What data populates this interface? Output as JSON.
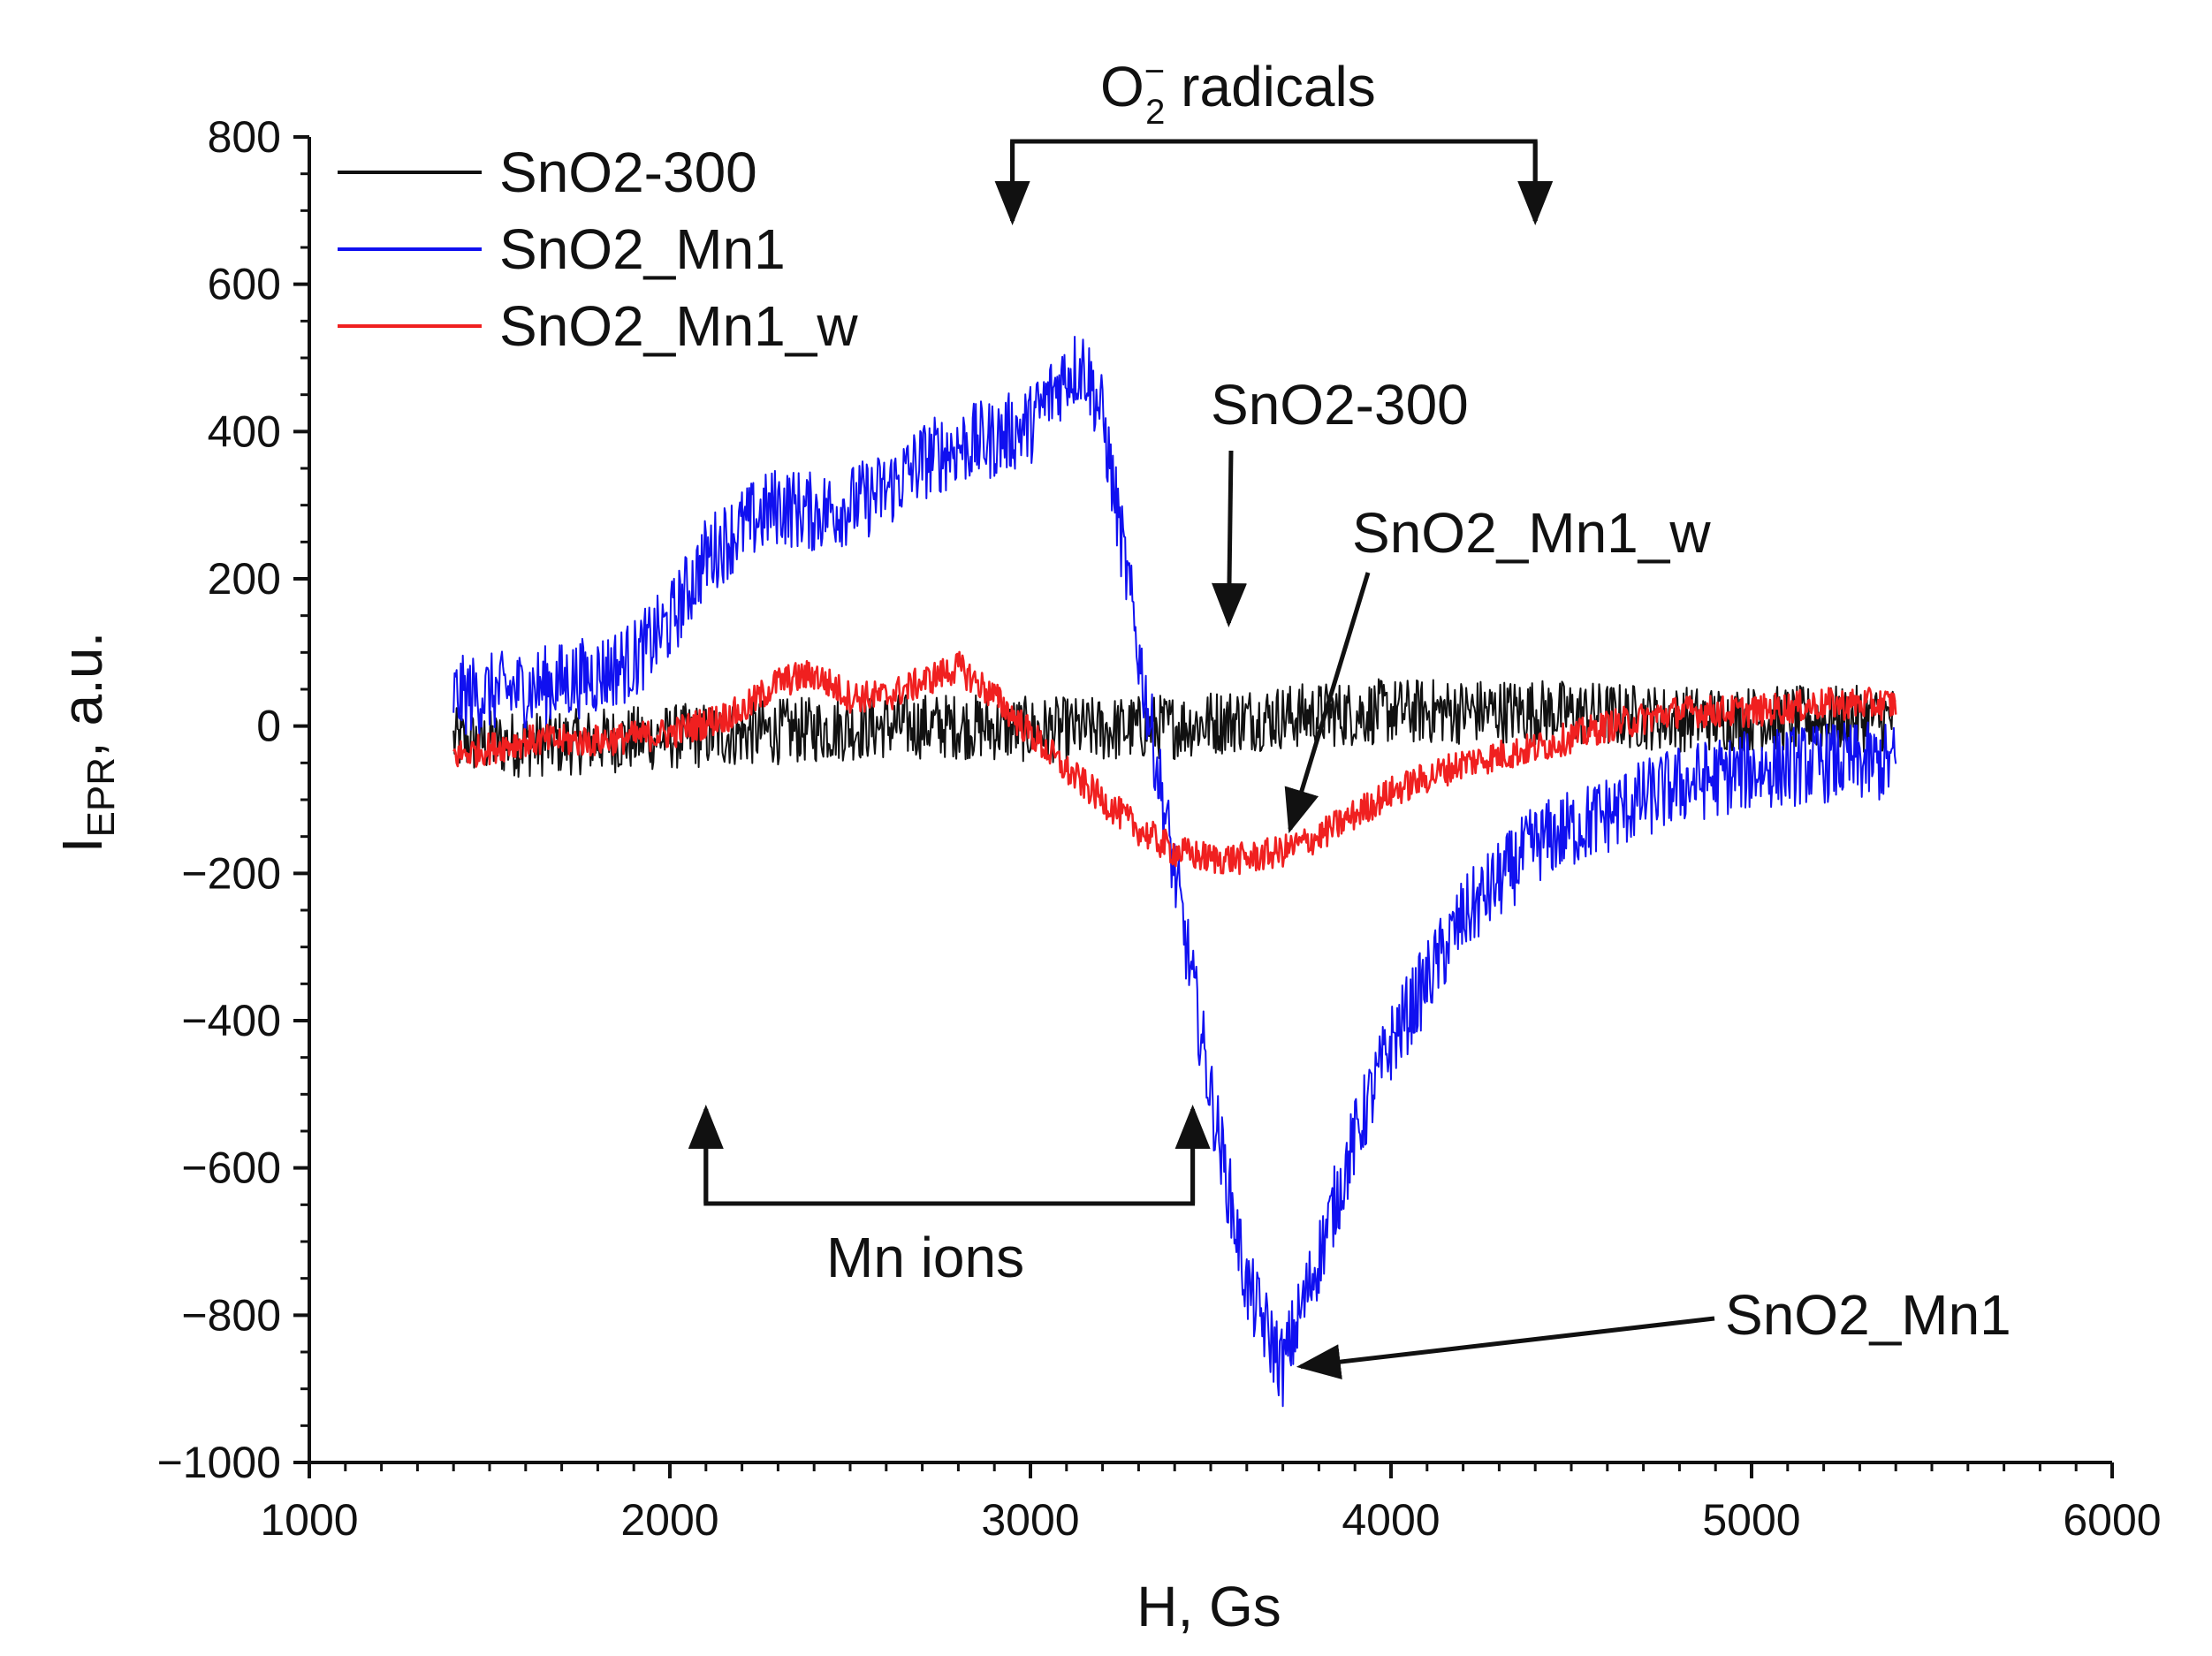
{
  "chart_data": {
    "type": "line",
    "title": "",
    "xlabel": "H, Gs",
    "ylabel_main": "I",
    "ylabel_sub": "EPR",
    "ylabel_rest": ", a.u.",
    "xlim": [
      1000,
      6000
    ],
    "ylim": [
      -1000,
      800
    ],
    "xticks": [
      1000,
      2000,
      3000,
      4000,
      5000,
      6000
    ],
    "xtick_labels": [
      "1000",
      "2000",
      "3000",
      "4000",
      "5000",
      "6000"
    ],
    "yticks": [
      800,
      600,
      400,
      200,
      0,
      -200,
      -400,
      -600,
      -800,
      -1000
    ],
    "ytick_labels": [
      "800",
      "600",
      "400",
      "200",
      "0",
      "−200",
      "−400",
      "−600",
      "−800",
      "−1000"
    ],
    "x_minor_step": 100,
    "y_minor_step": 50,
    "grid": false,
    "legend_position": "top-left",
    "series": [
      {
        "name": "SnO2-300",
        "color": "#111111",
        "noise_amplitude": 45,
        "x": [
          1400,
          1600,
          1800,
          2000,
          2200,
          2400,
          2600,
          2800,
          3000,
          3200,
          3400,
          3600,
          3800,
          4000,
          4200,
          4400,
          4600,
          4800,
          5000,
          5200,
          5400
        ],
        "y": [
          -20,
          -25,
          -20,
          -15,
          -10,
          -5,
          0,
          0,
          -5,
          -5,
          0,
          10,
          15,
          20,
          20,
          20,
          15,
          10,
          10,
          10,
          10
        ]
      },
      {
        "name": "SnO2_Mn1",
        "color": "#1010f0",
        "noise_amplitude": 55,
        "x": [
          1400,
          1600,
          1800,
          1900,
          2000,
          2100,
          2200,
          2300,
          2400,
          2500,
          2600,
          2700,
          2800,
          2900,
          3000,
          3100,
          3150,
          3200,
          3300,
          3400,
          3500,
          3600,
          3700,
          3800,
          3900,
          4000,
          4200,
          4400,
          4600,
          4800,
          5000,
          5200,
          5400
        ],
        "y": [
          40,
          50,
          70,
          90,
          140,
          230,
          270,
          300,
          290,
          300,
          320,
          360,
          380,
          390,
          410,
          480,
          490,
          420,
          100,
          -200,
          -500,
          -760,
          -870,
          -720,
          -560,
          -430,
          -260,
          -160,
          -120,
          -80,
          -60,
          -50,
          -50
        ]
      },
      {
        "name": "SnO2_Mn1_w",
        "color": "#f02020",
        "noise_amplitude": 22,
        "x": [
          1400,
          1600,
          1800,
          2000,
          2200,
          2300,
          2400,
          2500,
          2600,
          2700,
          2800,
          2900,
          3000,
          3100,
          3200,
          3300,
          3400,
          3500,
          3600,
          3700,
          3800,
          3900,
          4000,
          4200,
          4400,
          4600,
          4800,
          5000,
          5200,
          5400
        ],
        "y": [
          -40,
          -20,
          -20,
          -10,
          20,
          60,
          70,
          40,
          40,
          60,
          80,
          40,
          -10,
          -60,
          -100,
          -140,
          -170,
          -180,
          -180,
          -170,
          -150,
          -120,
          -90,
          -50,
          -30,
          0,
          20,
          20,
          30,
          30
        ]
      }
    ],
    "annotations": {
      "o2_radicals": {
        "text": "O",
        "sup": "−",
        "sub": "2",
        "rest": " radicals",
        "bracket_x": [
          2950,
          4400
        ]
      },
      "mn_ions": {
        "text": "Mn ions",
        "bracket_x": [
          2100,
          3450
        ]
      },
      "label_sno2_300": {
        "text": "SnO2-300",
        "target": [
          3550,
          140
        ]
      },
      "label_sno2_mn1_w": {
        "text": "SnO2_Mn1_w",
        "target": [
          3720,
          -140
        ]
      },
      "label_sno2_mn1": {
        "text": "SnO2_Mn1",
        "target": [
          3730,
          -860
        ]
      }
    }
  }
}
